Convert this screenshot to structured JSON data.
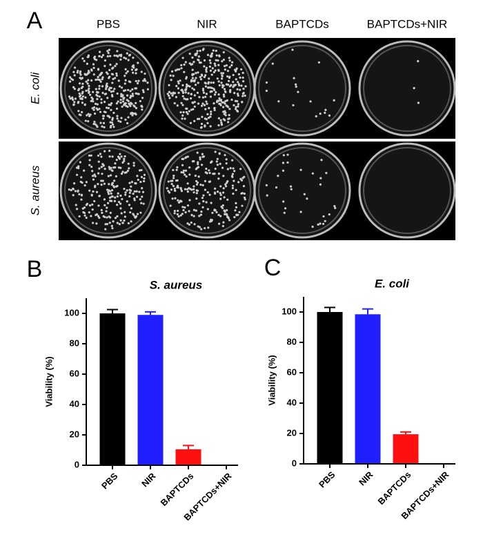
{
  "panel_a": {
    "label": "A",
    "columns": [
      "PBS",
      "NIR",
      "BAPTCDs",
      "BAPTCDs+NIR"
    ],
    "rows": [
      "E. coli",
      "S. aureus"
    ]
  },
  "chart_data": [
    {
      "type": "bar",
      "panel_label": "B",
      "title": "S. aureus",
      "ylabel": "Viability (%)",
      "categories": [
        "PBS",
        "NIR",
        "BAPTCDs",
        "BAPTCDs+NIR"
      ],
      "values": [
        100,
        99,
        10.5,
        0
      ],
      "errors": [
        2.5,
        2,
        2.5,
        0
      ],
      "colors": [
        "#000000",
        "#1f1fff",
        "#ff1010",
        "#000000"
      ],
      "ylim": [
        0,
        110
      ],
      "yticks": [
        0,
        20,
        40,
        60,
        80,
        100
      ]
    },
    {
      "type": "bar",
      "panel_label": "C",
      "title": "E. coli",
      "ylabel": "Viability (%)",
      "categories": [
        "PBS",
        "NIR",
        "BAPTCDs",
        "BAPTCDs+NIR"
      ],
      "values": [
        100,
        98.5,
        19.5,
        0
      ],
      "errors": [
        3,
        3.5,
        1.5,
        0
      ],
      "colors": [
        "#000000",
        "#1f1fff",
        "#ff1010",
        "#000000"
      ],
      "ylim": [
        0,
        110
      ],
      "yticks": [
        0,
        20,
        40,
        60,
        80,
        100
      ]
    }
  ]
}
